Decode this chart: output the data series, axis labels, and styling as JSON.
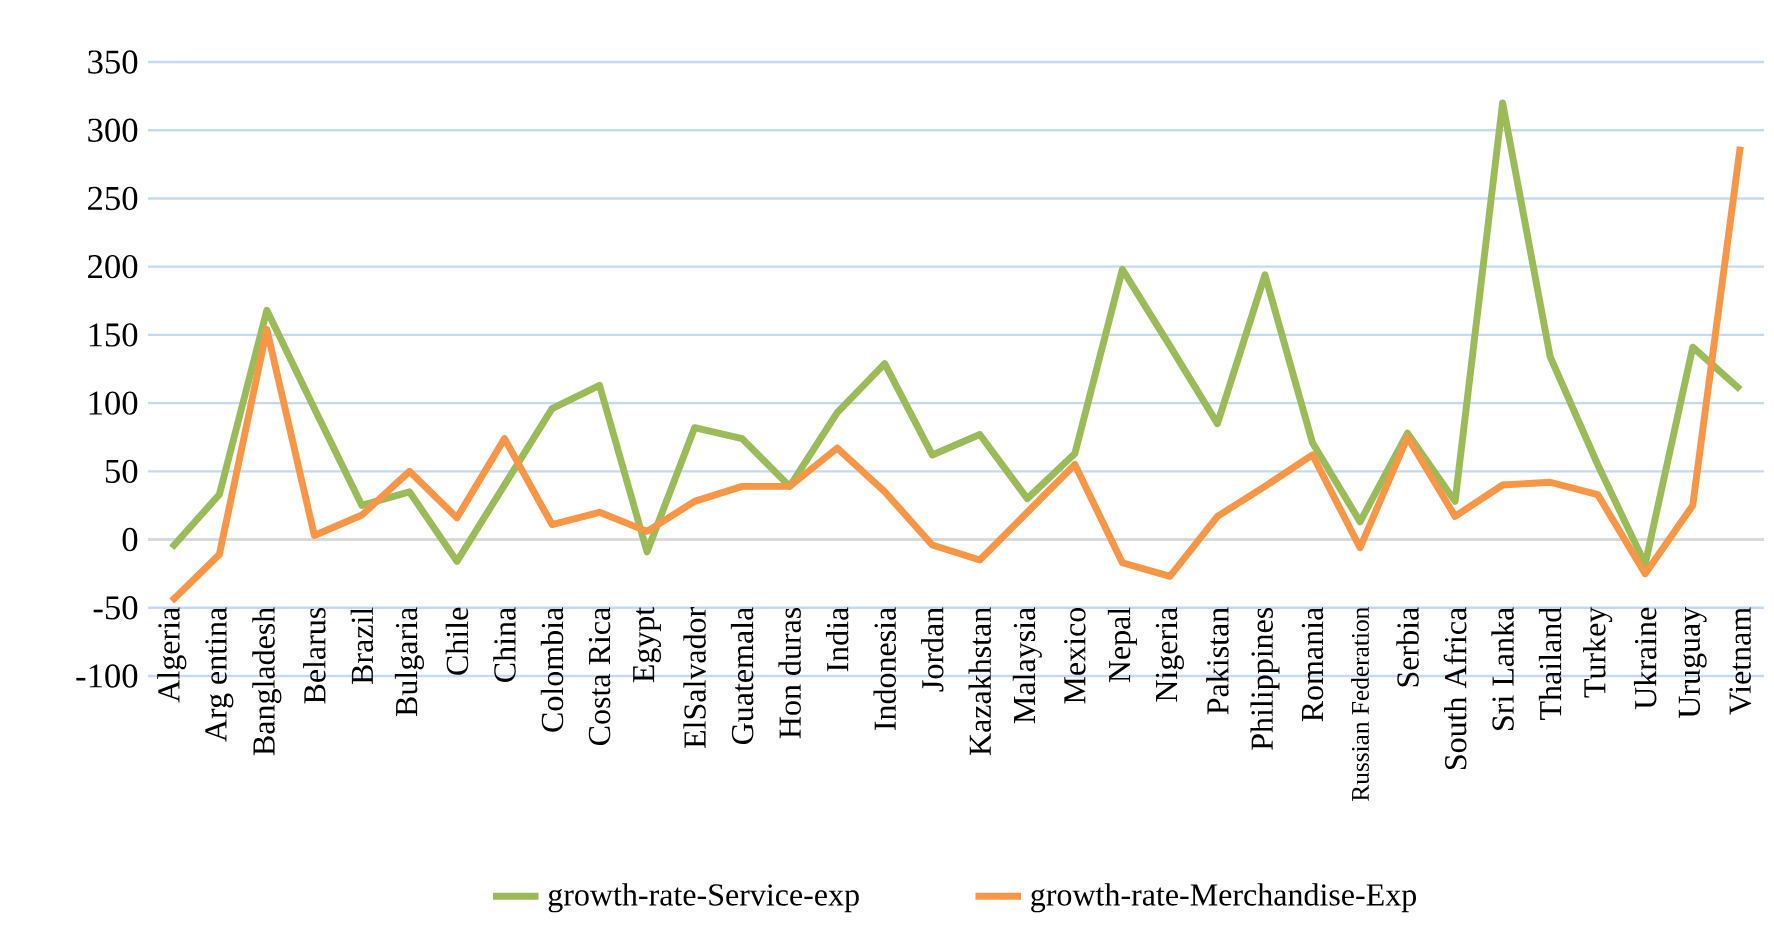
{
  "chart_data": {
    "type": "line",
    "categories": [
      "Algeria",
      "Arg entina",
      "Bangladesh",
      "Belarus",
      "Brazil",
      "Bulgaria",
      "Chile",
      "China",
      "Colombia",
      "Costa Rica",
      "Egypt",
      "ElSalvador",
      "Guatemala",
      "Hon duras",
      "India",
      "Indonesia",
      "Jordan",
      "Kazakhstan",
      "Malaysia",
      "Mexico",
      "Nepal",
      "Nigeria",
      "Pakistan",
      "Philippines",
      "Romania",
      "Russian Federation",
      "Serbia",
      "South Africa",
      "Sri Lanka",
      "Thailand",
      "Turkey",
      "Ukraine",
      "Uruguay",
      "Vietnam"
    ],
    "series": [
      {
        "name": "growth-rate-Service-exp",
        "color": "#9bbb59",
        "values": [
          -6,
          33,
          168,
          96,
          25,
          35,
          -16,
          40,
          96,
          113,
          -9,
          82,
          74,
          39,
          93,
          129,
          62,
          77,
          30,
          63,
          198,
          142,
          85,
          194,
          71,
          13,
          78,
          28,
          320,
          134,
          55,
          -18,
          141,
          110
        ]
      },
      {
        "name": "growth-rate-Merchandise-Exp",
        "color": "#f79646",
        "values": [
          -45,
          -11,
          154,
          3,
          18,
          50,
          16,
          74,
          11,
          20,
          6,
          28,
          39,
          39,
          67,
          35,
          -4,
          -15,
          20,
          55,
          -17,
          -27,
          17,
          39,
          62,
          -6,
          75,
          17,
          40,
          42,
          33,
          -25,
          25,
          288
        ]
      }
    ],
    "ylim": [
      -100,
      350
    ],
    "yticks": [
      -100,
      -50,
      0,
      50,
      100,
      150,
      200,
      250,
      300,
      350
    ],
    "grid": "y",
    "legend": "bottom",
    "marker": "none",
    "line_style": "solid"
  }
}
